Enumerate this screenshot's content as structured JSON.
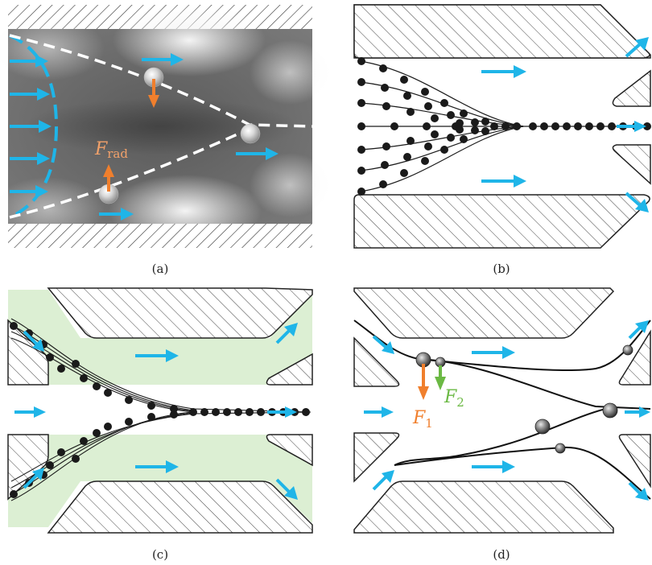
{
  "figure": {
    "panels": [
      {
        "id": "a",
        "caption": "(a)",
        "force_label": {
          "symbol": "F",
          "subscript": "rad"
        }
      },
      {
        "id": "b",
        "caption": "(b)"
      },
      {
        "id": "c",
        "caption": "(c)"
      },
      {
        "id": "d",
        "caption": "(d)",
        "force_labels": [
          {
            "symbol": "F",
            "subscript": "1"
          },
          {
            "symbol": "F",
            "subscript": "2"
          }
        ]
      }
    ]
  },
  "colors": {
    "flow_arrow": "#1fb5e8",
    "force_orange": "#f07f2d",
    "force_green": "#6bb944",
    "focus_region": "#dcefd3",
    "streamline": "#1a1a1a",
    "hatch": "#333333"
  }
}
